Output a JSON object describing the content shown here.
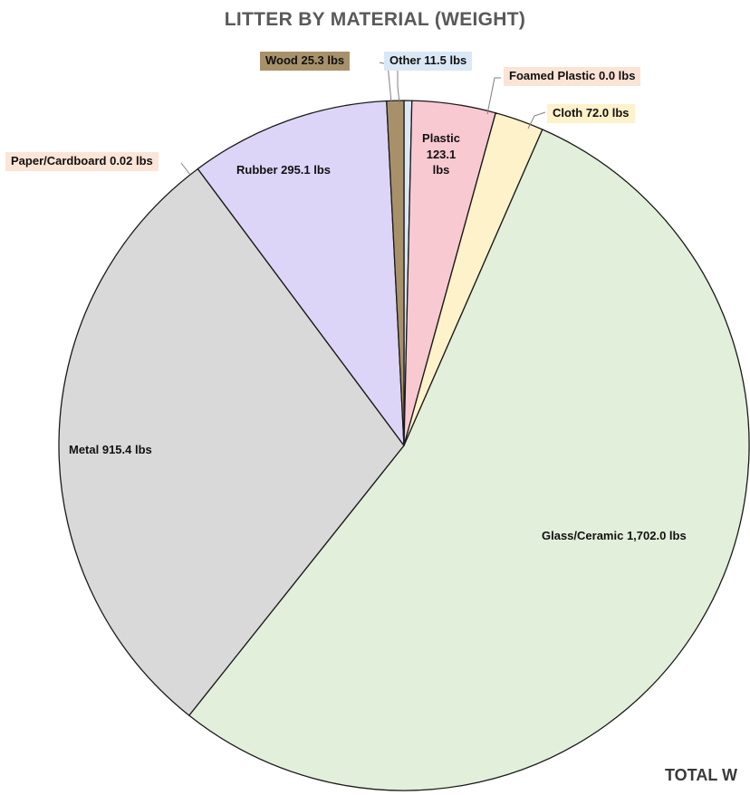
{
  "chart_data": {
    "type": "pie",
    "title": "LITTER BY MATERIAL (WEIGHT)",
    "unit": "lbs",
    "slices": [
      {
        "label": "Other 11.5 lbs",
        "category": "Other",
        "value": 11.5,
        "color": "#dae8f5",
        "boxed": true
      },
      {
        "label": "Plastic 123.1 lbs",
        "category": "Plastic",
        "value": 123.1,
        "color": "#f9c9d2",
        "boxed": false
      },
      {
        "label": "Foamed Plastic 0.0 lbs",
        "category": "Foamed Plastic",
        "value": 0.0,
        "color": "#fbe3d6",
        "boxed": true
      },
      {
        "label": "Cloth 72.0 lbs",
        "category": "Cloth",
        "value": 72.0,
        "color": "#fef2cb",
        "boxed": true
      },
      {
        "label": "Glass/Ceramic 1,702.0 lbs",
        "category": "Glass/Ceramic",
        "value": 1702.0,
        "color": "#e2efda",
        "boxed": false
      },
      {
        "label": "Metal 915.4 lbs",
        "category": "Metal",
        "value": 915.4,
        "color": "#d9d9d9",
        "boxed": false
      },
      {
        "label": "Paper/Cardboard 0.02 lbs",
        "category": "Paper/Cardboard",
        "value": 0.02,
        "color": "#fbe5d6",
        "boxed": true
      },
      {
        "label": "Rubber 295.1 lbs",
        "category": "Rubber",
        "value": 295.1,
        "color": "#ddd5f8",
        "boxed": false
      },
      {
        "label": "Wood 25.3 lbs",
        "category": "Wood",
        "value": 25.3,
        "color": "#a8916a",
        "boxed": true
      }
    ],
    "plastic_label_lines": [
      "Plastic",
      "123.1",
      "lbs"
    ]
  },
  "footer": {
    "text": "TOTAL W"
  }
}
